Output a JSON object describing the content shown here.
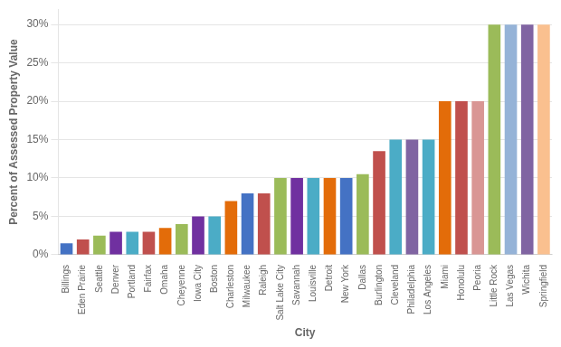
{
  "chart_data": {
    "type": "bar",
    "categories": [
      "Billings",
      "Eden Prairie",
      "Seattle",
      "Denver",
      "Portland",
      "Fairfax",
      "Omaha",
      "Cheyenne",
      "Iowa City",
      "Boston",
      "Charleston",
      "Milwaukee",
      "Raleigh",
      "Salt Lake City",
      "Savannah",
      "Louisville",
      "Detroit",
      "New York",
      "Dallas",
      "Burlington",
      "Cleveland",
      "Philadelphia",
      "Los Angeles",
      "Miami",
      "Honolulu",
      "Peoria",
      "Little Rock",
      "Las Vegas",
      "Wichita",
      "Springfield"
    ],
    "values": [
      1.5,
      2.0,
      2.5,
      3.0,
      3.0,
      3.0,
      3.5,
      4.0,
      5.0,
      5.0,
      7.0,
      8.0,
      8.0,
      10.0,
      10.0,
      10.0,
      10.0,
      10.0,
      10.5,
      13.5,
      15.0,
      15.0,
      15.0,
      20.0,
      20.0,
      20.0,
      30.0,
      30.0,
      30.0,
      30.0
    ],
    "colors": [
      "#4472C4",
      "#C0504D",
      "#9BBB59",
      "#7030A0",
      "#4BACC6",
      "#C0504D",
      "#E36C09",
      "#9BBB59",
      "#7030A0",
      "#4BACC6",
      "#E36C09",
      "#4472C4",
      "#C0504D",
      "#9BBB59",
      "#7030A0",
      "#4BACC6",
      "#E36C09",
      "#4472C4",
      "#9BBB59",
      "#C0504D",
      "#4BACC6",
      "#8064A2",
      "#4BACC6",
      "#E36C09",
      "#C0504D",
      "#D99694",
      "#9BBB59",
      "#95B3D7",
      "#8064A2",
      "#FAC08F"
    ],
    "xlabel": "City",
    "ylabel": "Percent of Assessed Property Value",
    "ylim": [
      0,
      32
    ],
    "yticks": [
      {
        "value": 0,
        "label": "0%"
      },
      {
        "value": 5,
        "label": "5%"
      },
      {
        "value": 10,
        "label": "10%"
      },
      {
        "value": 15,
        "label": "15%"
      },
      {
        "value": 20,
        "label": "20%"
      },
      {
        "value": 25,
        "label": "25%"
      },
      {
        "value": 30,
        "label": "30%"
      }
    ],
    "grid": true
  }
}
